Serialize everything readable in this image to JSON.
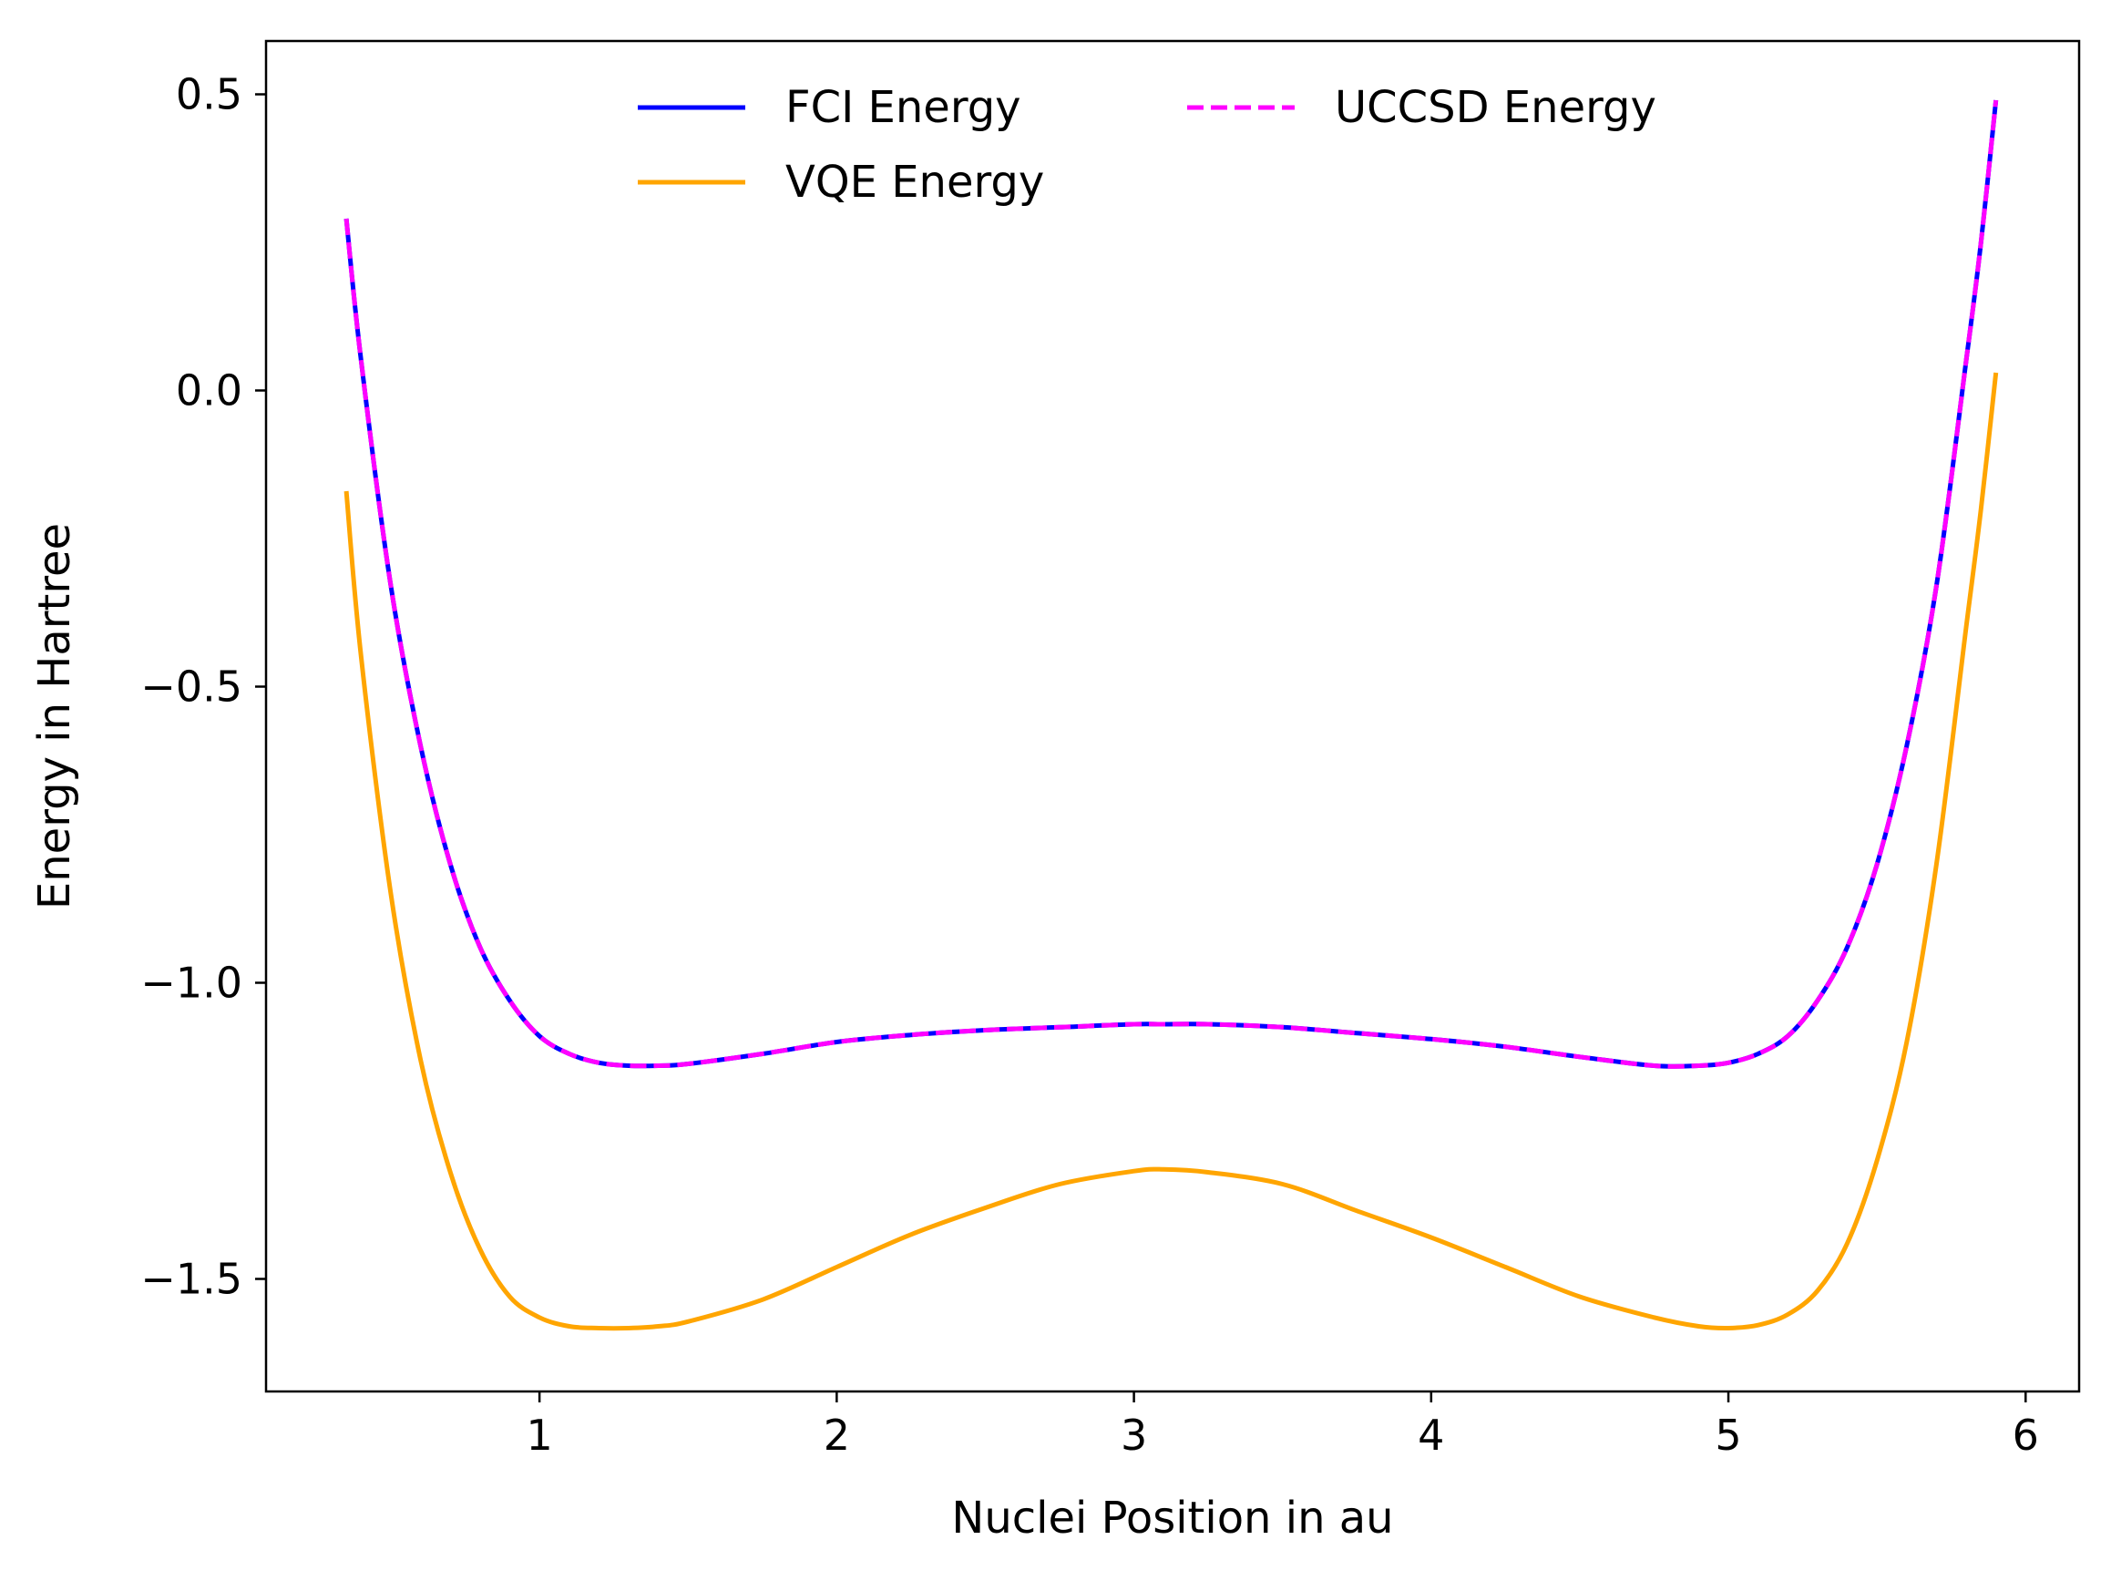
{
  "chart_data": {
    "type": "line",
    "title": "",
    "xlabel": "Nuclei Position in au",
    "ylabel": "Energy in Hartree",
    "xlim": [
      0.08,
      6.18
    ],
    "ylim": [
      -1.69,
      0.59
    ],
    "xticks": [
      1,
      2,
      3,
      4,
      5,
      6
    ],
    "xtick_labels": [
      "1",
      "2",
      "3",
      "4",
      "5",
      "6"
    ],
    "yticks": [
      0.5,
      0.0,
      -0.5,
      -1.0,
      -1.5
    ],
    "ytick_labels": [
      "0.5",
      "0.0",
      "−0.5",
      "−1.0",
      "−1.5"
    ],
    "grid": false,
    "legend": {
      "placement": "top-center",
      "columns": 2
    },
    "x": [
      0.35,
      0.4,
      0.5,
      0.6,
      0.7,
      0.8,
      0.9,
      1.0,
      1.1,
      1.2,
      1.3,
      1.4,
      1.5,
      1.75,
      2.0,
      2.25,
      2.5,
      2.75,
      3.0,
      3.1,
      3.25,
      3.5,
      3.75,
      4.0,
      4.25,
      4.5,
      4.75,
      4.9,
      5.0,
      5.1,
      5.2,
      5.3,
      5.4,
      5.5,
      5.6,
      5.7,
      5.8,
      5.85,
      5.9
    ],
    "series": [
      {
        "name": "FCI Energy",
        "color": "#0000ff",
        "style": "solid",
        "values": [
          0.29,
          0.05,
          -0.33,
          -0.6,
          -0.8,
          -0.94,
          -1.03,
          -1.09,
          -1.12,
          -1.135,
          -1.14,
          -1.14,
          -1.137,
          -1.12,
          -1.1,
          -1.088,
          -1.08,
          -1.075,
          -1.07,
          -1.07,
          -1.07,
          -1.075,
          -1.085,
          -1.095,
          -1.108,
          -1.125,
          -1.14,
          -1.14,
          -1.135,
          -1.12,
          -1.09,
          -1.03,
          -0.94,
          -0.8,
          -0.6,
          -0.33,
          0.05,
          0.25,
          0.49
        ]
      },
      {
        "name": "VQE Energy",
        "color": "#ffa500",
        "style": "solid",
        "values": [
          -0.17,
          -0.45,
          -0.85,
          -1.13,
          -1.32,
          -1.45,
          -1.53,
          -1.565,
          -1.58,
          -1.583,
          -1.583,
          -1.58,
          -1.572,
          -1.535,
          -1.48,
          -1.425,
          -1.38,
          -1.34,
          -1.318,
          -1.315,
          -1.32,
          -1.34,
          -1.385,
          -1.43,
          -1.48,
          -1.53,
          -1.565,
          -1.58,
          -1.583,
          -1.578,
          -1.56,
          -1.52,
          -1.44,
          -1.3,
          -1.1,
          -0.8,
          -0.4,
          -0.2,
          0.03
        ]
      },
      {
        "name": "UCCSD Energy",
        "color": "#ff00ff",
        "style": "dashed",
        "values": [
          0.29,
          0.05,
          -0.33,
          -0.6,
          -0.8,
          -0.94,
          -1.03,
          -1.09,
          -1.12,
          -1.135,
          -1.14,
          -1.14,
          -1.137,
          -1.12,
          -1.1,
          -1.088,
          -1.08,
          -1.075,
          -1.07,
          -1.07,
          -1.07,
          -1.075,
          -1.085,
          -1.095,
          -1.108,
          -1.125,
          -1.14,
          -1.14,
          -1.135,
          -1.12,
          -1.09,
          -1.03,
          -0.94,
          -0.8,
          -0.6,
          -0.33,
          0.05,
          0.25,
          0.49
        ]
      }
    ]
  }
}
